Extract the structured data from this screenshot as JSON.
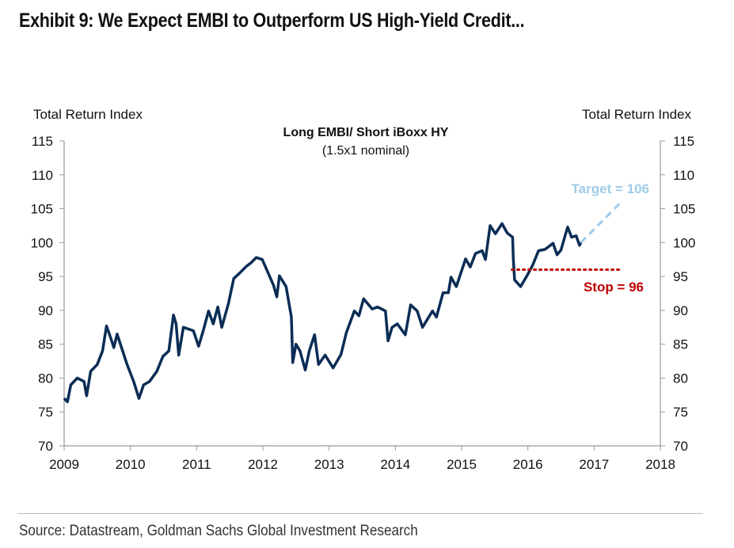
{
  "title": "Exhibit 9: We Expect EMBI to Outperform US High-Yield Credit...",
  "source": "Source: Datastream, Goldman Sachs Global Investment Research",
  "chart_data": {
    "type": "line",
    "title": "Long EMBI/ Short iBoxx HY",
    "subtitle": "(1.5x1 nominal)",
    "ylabel_left": "Total Return Index",
    "ylabel_right": "Total Return Index",
    "xlim": [
      2009,
      2018
    ],
    "ylim": [
      70,
      115
    ],
    "x_ticks": [
      "2009",
      "2010",
      "2011",
      "2012",
      "2013",
      "2014",
      "2015",
      "2016",
      "2017",
      "2018"
    ],
    "y_ticks": [
      "70",
      "75",
      "80",
      "85",
      "90",
      "95",
      "100",
      "105",
      "110",
      "115"
    ],
    "grid": false,
    "colors": {
      "series": "#0b2d55",
      "target": "#9fcbe8",
      "stop": "#c00000"
    },
    "series": [
      {
        "x": [
          2009.0,
          2009.05,
          2009.1,
          2009.2,
          2009.3,
          2009.34,
          2009.4,
          2009.5,
          2009.58,
          2009.64,
          2009.7,
          2009.75,
          2009.8,
          2009.85,
          2009.95,
          2010.05,
          2010.13,
          2010.2,
          2010.29,
          2010.4,
          2010.49,
          2010.58,
          2010.65,
          2010.69,
          2010.73,
          2010.8,
          2010.95,
          2011.03,
          2011.1,
          2011.18,
          2011.25,
          2011.32,
          2011.38,
          2011.48,
          2011.56,
          2011.65,
          2011.75,
          2011.82,
          2011.9,
          2011.99,
          2012.08,
          2012.16,
          2012.21,
          2012.25,
          2012.35,
          2012.43,
          2012.45,
          2012.5,
          2012.56,
          2012.64,
          2012.7,
          2012.78,
          2012.84,
          2012.94,
          2013.06,
          2013.18,
          2013.26,
          2013.38,
          2013.45,
          2013.52,
          2013.65,
          2013.73,
          2013.85,
          2013.89,
          2013.95,
          2014.03,
          2014.15,
          2014.23,
          2014.33,
          2014.41,
          2014.56,
          2014.62,
          2014.72,
          2014.8,
          2014.84,
          2014.92,
          2015.06,
          2015.13,
          2015.21,
          2015.31,
          2015.36,
          2015.43,
          2015.51,
          2015.61,
          2015.69,
          2015.77,
          2015.78,
          2015.8,
          2015.89,
          2015.98,
          2016.07,
          2016.16,
          2016.26,
          2016.38,
          2016.44,
          2016.5,
          2016.6,
          2016.66,
          2016.73,
          2016.78,
          2016.8
        ],
        "y": [
          77,
          76.5,
          79,
          80,
          79.5,
          77.4,
          81,
          82,
          84,
          87.7,
          86,
          84.5,
          86.5,
          85,
          82,
          79.5,
          77,
          79,
          79.5,
          81,
          83.2,
          84,
          89.3,
          88,
          83.4,
          87.5,
          87,
          84.7,
          87,
          89.9,
          88,
          90.5,
          87.5,
          91,
          94.7,
          95.5,
          96.5,
          97,
          97.8,
          97.5,
          95.5,
          93.7,
          92,
          95.1,
          93.5,
          89,
          82.3,
          85,
          84,
          81.2,
          84,
          86.4,
          82,
          83.4,
          81.5,
          83.5,
          86.7,
          89.9,
          89.2,
          91.7,
          90.2,
          90.5,
          89.9,
          85.5,
          87.5,
          88,
          86.4,
          90.8,
          89.9,
          87.5,
          89.9,
          89,
          92.6,
          92.6,
          94.9,
          93.5,
          97.6,
          96.4,
          98.4,
          98.8,
          97.5,
          102.5,
          101.3,
          102.8,
          101.4,
          100.8,
          97.5,
          94.5,
          93.5,
          95,
          96.6,
          98.8,
          99,
          99.9,
          98.2,
          98.9,
          102.3,
          100.8,
          101,
          99.6,
          100
        ]
      }
    ],
    "annotations": {
      "target": {
        "label": "Target = 106",
        "from": [
          2016.8,
          100
        ],
        "to": [
          2017.41,
          106
        ]
      },
      "stop": {
        "label": "Stop = 96",
        "from": 2015.76,
        "to": 2017.39,
        "value": 96
      }
    }
  }
}
